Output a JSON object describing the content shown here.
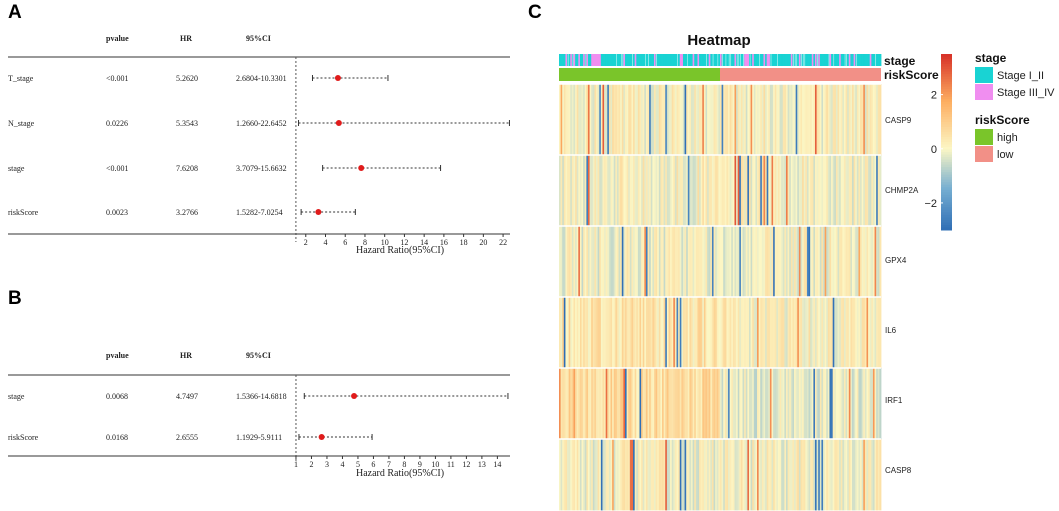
{
  "panels": {
    "a": "A",
    "b": "B",
    "c": "C"
  },
  "chart_data": [
    {
      "type": "forest",
      "panel": "A",
      "columns": {
        "pvalue": "pvalue",
        "hr": "HR",
        "ci": "95%CI"
      },
      "rows": [
        {
          "label": "T_stage",
          "pvalue": "<0.001",
          "hr_text": "5.2620",
          "ci_text": "2.6804-10.3301",
          "hr": 5.262,
          "lo": 2.6804,
          "hi": 10.3301
        },
        {
          "label": "N_stage",
          "pvalue": "0.0226",
          "hr_text": "5.3543",
          "ci_text": "1.2660-22.6452",
          "hr": 5.3543,
          "lo": 1.266,
          "hi": 22.6452
        },
        {
          "label": "stage",
          "pvalue": "<0.001",
          "hr_text": "7.6208",
          "ci_text": "3.7079-15.6632",
          "hr": 7.6208,
          "lo": 3.7079,
          "hi": 15.6632
        },
        {
          "label": "riskScore",
          "pvalue": "0.0023",
          "hr_text": "3.2766",
          "ci_text": "1.5282-7.0254",
          "hr": 3.2766,
          "lo": 1.5282,
          "hi": 7.0254
        }
      ],
      "xlabel": "Hazard Ratio(95%CI)",
      "xlim": [
        0.3,
        22.6
      ],
      "ticks": [
        2,
        4,
        6,
        8,
        10,
        12,
        14,
        16,
        18,
        20,
        22
      ],
      "ref_line": 1
    },
    {
      "type": "forest",
      "panel": "B",
      "columns": {
        "pvalue": "pvalue",
        "hr": "HR",
        "ci": "95%CI"
      },
      "rows": [
        {
          "label": "stage",
          "pvalue": "0.0068",
          "hr_text": "4.7497",
          "ci_text": "1.5366-14.6818",
          "hr": 4.7497,
          "lo": 1.5366,
          "hi": 14.6818
        },
        {
          "label": "riskScore",
          "pvalue": "0.0168",
          "hr_text": "2.6555",
          "ci_text": "1.1929-5.9111",
          "hr": 2.6555,
          "lo": 1.1929,
          "hi": 5.9111
        }
      ],
      "xlabel": "Hazard Ratio(95%CI)",
      "xlim": [
        0.55,
        14.75
      ],
      "ticks": [
        1,
        2,
        3,
        4,
        5,
        6,
        7,
        8,
        9,
        10,
        11,
        12,
        13,
        14
      ],
      "ref_line": 1
    },
    {
      "type": "heatmap",
      "panel": "C",
      "title": "Heatmap",
      "genes": [
        "CASP9",
        "CHMP2A",
        "GPX4",
        "IL6",
        "IRF1",
        "CASP8"
      ],
      "n_samples": 200,
      "annotation_rows": [
        "stage",
        "riskScore"
      ],
      "risk_split": {
        "high_fraction": 0.5,
        "high_label": "high",
        "low_label": "low"
      },
      "stage_legend": {
        "title": "stage",
        "items": [
          {
            "label": "Stage I_II",
            "color": "#19d3d3"
          },
          {
            "label": "Stage III_IV",
            "color": "#f08ef0"
          }
        ]
      },
      "risk_legend": {
        "title": "riskScore",
        "items": [
          {
            "label": "high",
            "color": "#7ac52a"
          },
          {
            "label": "low",
            "color": "#f29087"
          }
        ]
      },
      "color_scale": {
        "min": -3,
        "max": 3.5,
        "ticks": [
          {
            "value": 2,
            "label": "2"
          },
          {
            "value": 0,
            "label": "0"
          },
          {
            "value": -2,
            "label": "−2"
          }
        ],
        "low_color": "#2f6eb5",
        "mid_color": "#fcf7c5",
        "high_color": "#d73027"
      }
    }
  ]
}
